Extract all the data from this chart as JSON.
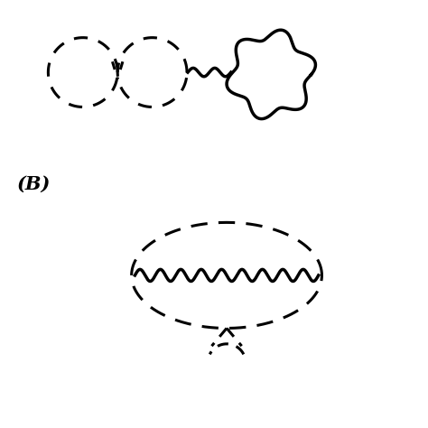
{
  "bg_color": "#ffffff",
  "line_color": "#000000",
  "lw": 2.2,
  "lw_wavy": 2.5,
  "label_B": "(B)",
  "label_fontsize": 15
}
